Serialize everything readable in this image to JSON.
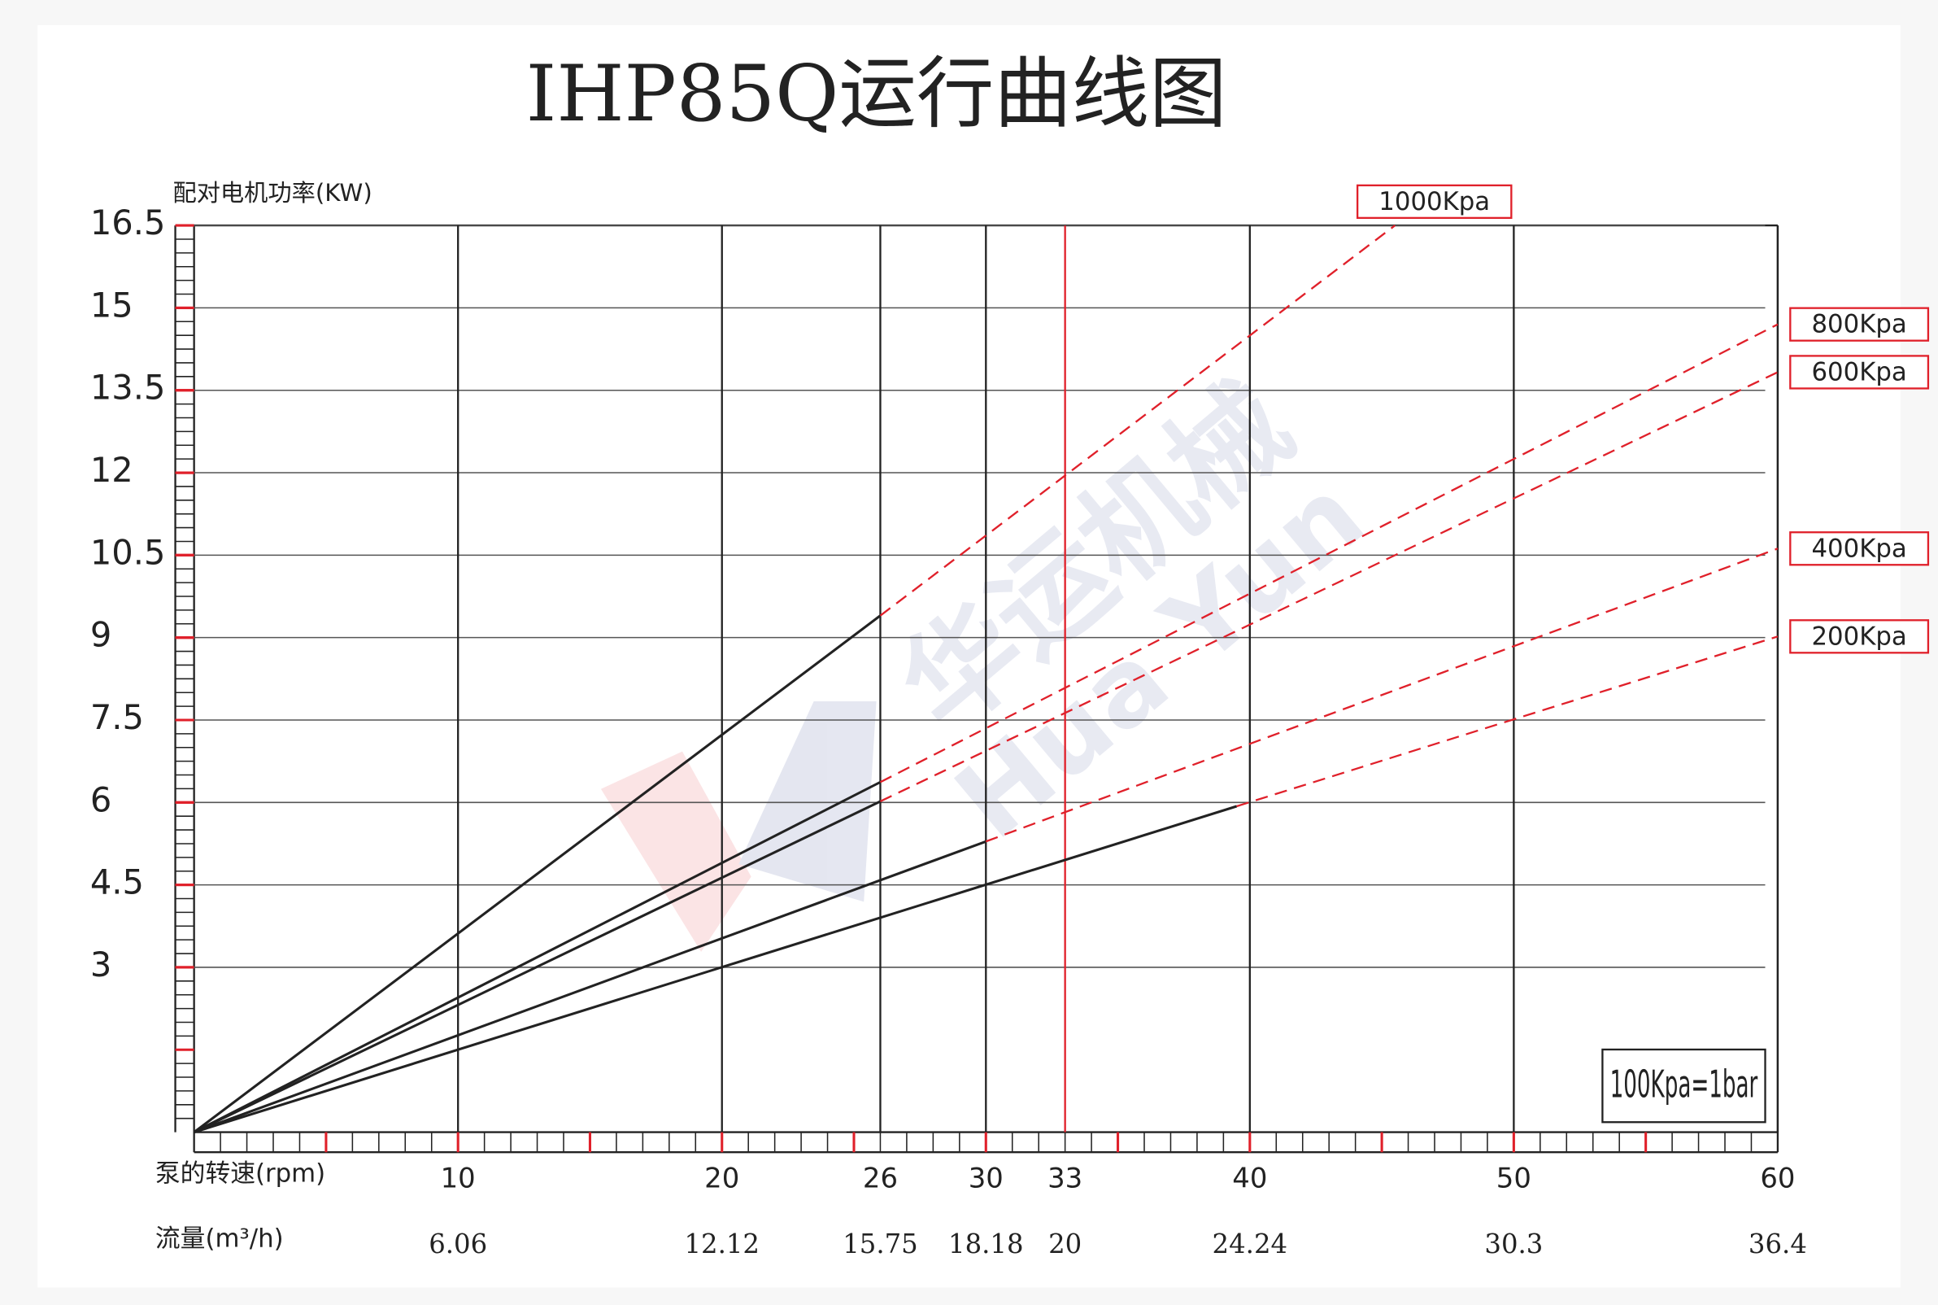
{
  "chart_data": {
    "type": "line",
    "title": "IHP85Q运行曲线图",
    "y_label": "配对电机功率(KW)",
    "x_label": "泵的转速(rpm)",
    "x2_label": "流量(m³/h)",
    "xlim": [
      0,
      60
    ],
    "ylim": [
      0,
      16.5
    ],
    "xticks": [
      10,
      20,
      26,
      30,
      33,
      40,
      50,
      60
    ],
    "xtick_colors": [
      "#222",
      "#222",
      "#222",
      "#222",
      "#e0202a",
      "#222",
      "#222",
      "#222"
    ],
    "x2ticks": [
      6.06,
      12.12,
      15.75,
      18.18,
      20,
      24.24,
      30.3,
      36.4
    ],
    "yticks": [
      3,
      4.5,
      6,
      7.5,
      9,
      10.5,
      12,
      13.5,
      15,
      16.5
    ],
    "grid": true,
    "series": [
      {
        "name": "1000Kpa",
        "color": "#e0202a",
        "x": [
          0,
          26,
          45.5
        ],
        "values": [
          0,
          9.4,
          16.5
        ],
        "line_styles": [
          "solid",
          "dashed"
        ],
        "segment_colors": [
          "#222",
          "#e0202a"
        ]
      },
      {
        "name": "800Kpa",
        "color": "#e0202a",
        "x": [
          0,
          26,
          60
        ],
        "values": [
          0,
          6.37,
          14.7
        ],
        "line_styles": [
          "solid",
          "dashed"
        ],
        "segment_colors": [
          "#222",
          "#e0202a"
        ]
      },
      {
        "name": "600Kpa",
        "color": "#e0202a",
        "x": [
          0,
          26,
          60
        ],
        "values": [
          0,
          6.02,
          13.83
        ],
        "line_styles": [
          "solid",
          "dashed"
        ],
        "segment_colors": [
          "#222",
          "#e0202a"
        ]
      },
      {
        "name": "400Kpa",
        "color": "#e0202a",
        "x": [
          0,
          30,
          60
        ],
        "values": [
          0,
          5.29,
          10.62
        ],
        "line_styles": [
          "solid",
          "dashed"
        ],
        "segment_colors": [
          "#222",
          "#e0202a"
        ]
      },
      {
        "name": "200Kpa",
        "color": "#e0202a",
        "x": [
          0,
          39.5,
          60
        ],
        "values": [
          0,
          5.93,
          9.02
        ],
        "line_styles": [
          "solid",
          "dashed"
        ],
        "segment_colors": [
          "#222",
          "#e0202a"
        ]
      }
    ],
    "note": "100Kpa=1bar",
    "watermark": "华运机械",
    "watermark_en": "Hua Yun"
  }
}
